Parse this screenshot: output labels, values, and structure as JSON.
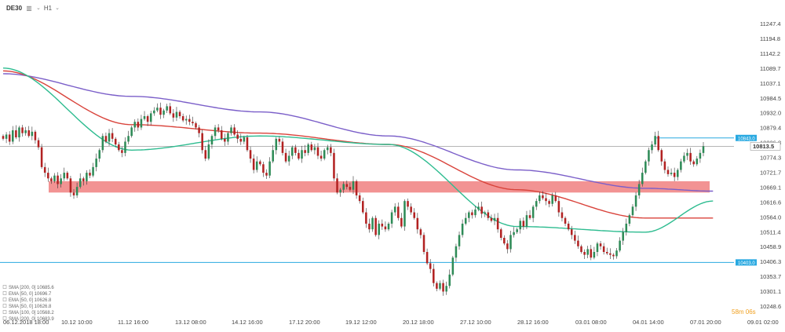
{
  "toolbar": {
    "symbol": "DE30",
    "chart_type_icon": "candles-icon",
    "timeframe": "H1",
    "dropdown_icon": "chevron-down-icon"
  },
  "price_tags": {
    "current": "10813.5",
    "resistance": "10843.0",
    "support": "10403.0"
  },
  "timer": "58m 06s",
  "colors": {
    "up": "#2e8b57",
    "down": "#b22222",
    "sma200": "#7b5fc9",
    "ema100": "#d9433b",
    "ema50": "#2ebc90",
    "zone": "#f08080",
    "support_line": "#29a9e1",
    "current_line": "#999999"
  },
  "chart_data": {
    "type": "candlestick",
    "symbol": "DE30",
    "timeframe": "H1",
    "ylim": [
      10248.6,
      11247.4
    ],
    "y_ticks": [
      11247.4,
      11194.8,
      11142.2,
      11089.7,
      11037.1,
      10984.5,
      10932.0,
      10879.4,
      10826.8,
      10774.3,
      10721.7,
      10669.1,
      10616.6,
      10564.0,
      10511.4,
      10458.9,
      10406.3,
      10353.7,
      10301.1,
      10248.6
    ],
    "x_ticks": [
      "06.12.2018 18:00",
      "10.12 10:00",
      "11.12 16:00",
      "13.12 08:00",
      "14.12 16:00",
      "17.12 20:00",
      "19.12 12:00",
      "20.12 18:00",
      "27.12 10:00",
      "28.12 16:00",
      "03.01 08:00",
      "04.01 14:00",
      "07.01 20:00",
      "09.01 02:00"
    ],
    "current_price": 10813.5,
    "resistance_level": 10843.0,
    "support_level": 10403.0,
    "zone": [
      10650,
      10690
    ],
    "legend": [
      "SMA [200, 0] 10685.6",
      "EMA [50, 0] 10696.7",
      "EMA [50, 0] 10626.8",
      "SMA [50, 0] 10626.8",
      "SMA [100, 0] 10568.2",
      "SMA [200, 0] 10683.9"
    ],
    "closes": [
      10840,
      10855,
      10830,
      10870,
      10845,
      10880,
      10860,
      10870,
      10850,
      10865,
      10835,
      10810,
      10740,
      10720,
      10700,
      10690,
      10710,
      10680,
      10700,
      10720,
      10700,
      10650,
      10640,
      10670,
      10700,
      10690,
      10720,
      10710,
      10740,
      10770,
      10800,
      10850,
      10830,
      10860,
      10840,
      10820,
      10800,
      10790,
      10830,
      10850,
      10880,
      10900,
      10880,
      10910,
      10920,
      10900,
      10930,
      10940,
      10950,
      10925,
      10940,
      10955,
      10930,
      10915,
      10935,
      10920,
      10905,
      10910,
      10900,
      10895,
      10880,
      10860,
      10800,
      10770,
      10820,
      10850,
      10880,
      10870,
      10840,
      10830,
      10860,
      10880,
      10855,
      10840,
      10830,
      10845,
      10800,
      10770,
      10730,
      10760,
      10750,
      10720,
      10710,
      10760,
      10800,
      10840,
      10830,
      10790,
      10760,
      10780,
      10810,
      10790,
      10770,
      10800,
      10790,
      10820,
      10800,
      10810,
      10780,
      10770,
      10800,
      10810,
      10790,
      10700,
      10650,
      10660,
      10680,
      10670,
      10660,
      10690,
      10640,
      10620,
      10580,
      10540,
      10520,
      10560,
      10500,
      10540,
      10530,
      10520,
      10540,
      10580,
      10600,
      10560,
      10530,
      10620,
      10600,
      10580,
      10560,
      10520,
      10500,
      10440,
      10400,
      10380,
      10330,
      10310,
      10330,
      10300,
      10320,
      10360,
      10420,
      10460,
      10500,
      10540,
      10560,
      10580,
      10570,
      10590,
      10600,
      10575,
      10580,
      10560,
      10550,
      10560,
      10520,
      10490,
      10470,
      10450,
      10500,
      10510,
      10520,
      10550,
      10530,
      10570,
      10560,
      10600,
      10620,
      10640,
      10630,
      10620,
      10610,
      10640,
      10620,
      10580,
      10560,
      10540,
      10520,
      10500,
      10480,
      10460,
      10440,
      10430,
      10450,
      10420,
      10440,
      10470,
      10460,
      10440,
      10435,
      10430,
      10425,
      10445,
      10480,
      10510,
      10540,
      10570,
      10600,
      10640,
      10680,
      10720,
      10760,
      10800,
      10820,
      10850,
      10800,
      10760,
      10730,
      10715,
      10720,
      10705,
      10730,
      10760,
      10780,
      10790,
      10760,
      10750,
      10770,
      10790,
      10813.5
    ],
    "series": [
      {
        "name": "SMA 200",
        "x": [
          0,
          40,
          80,
          120,
          160,
          200,
          221
        ],
        "y": [
          11070,
          10990,
          10935,
          10850,
          10730,
          10665,
          10655
        ]
      },
      {
        "name": "EMA 100",
        "x": [
          0,
          40,
          80,
          120,
          160,
          200,
          221
        ],
        "y": [
          11080,
          10890,
          10860,
          10820,
          10660,
          10560,
          10560
        ]
      },
      {
        "name": "EMA 50",
        "x": [
          0,
          40,
          80,
          120,
          160,
          200,
          221
        ],
        "y": [
          11090,
          10800,
          10850,
          10820,
          10530,
          10510,
          10620
        ]
      }
    ]
  }
}
